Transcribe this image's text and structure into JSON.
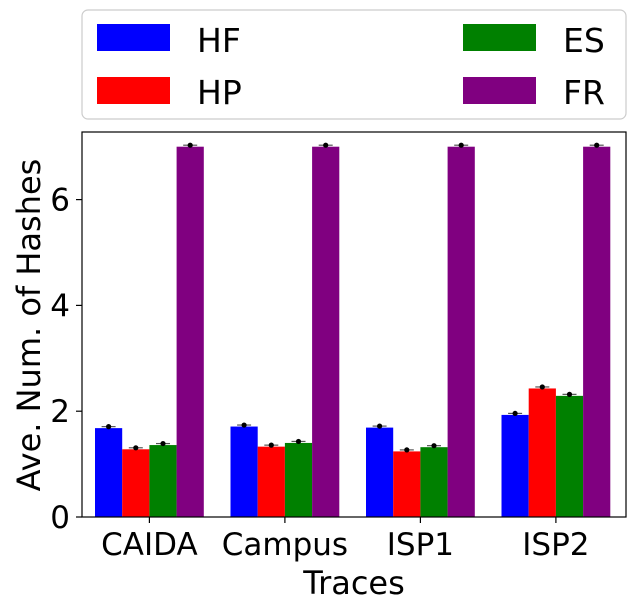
{
  "chart_data": {
    "type": "bar",
    "xlabel": "Traces",
    "ylabel": "Ave. Num. of Hashes",
    "categories": [
      "CAIDA",
      "Campus",
      "ISP1",
      "ISP2"
    ],
    "yticks": [
      "0",
      "2",
      "4",
      "6"
    ],
    "ylim": [
      0,
      7.3
    ],
    "legend_position": "top (above plot)",
    "series": [
      {
        "name": "HF",
        "color": "#0000ff",
        "values": [
          1.68,
          1.71,
          1.69,
          1.93
        ]
      },
      {
        "name": "HP",
        "color": "#ff0000",
        "values": [
          1.28,
          1.33,
          1.24,
          2.43
        ]
      },
      {
        "name": "ES",
        "color": "#008000",
        "values": [
          1.36,
          1.4,
          1.32,
          2.29
        ]
      },
      {
        "name": "FR",
        "color": "#800080",
        "values": [
          7.0,
          7.0,
          7.0,
          7.0
        ]
      }
    ],
    "error_bars": true,
    "grid": false
  }
}
